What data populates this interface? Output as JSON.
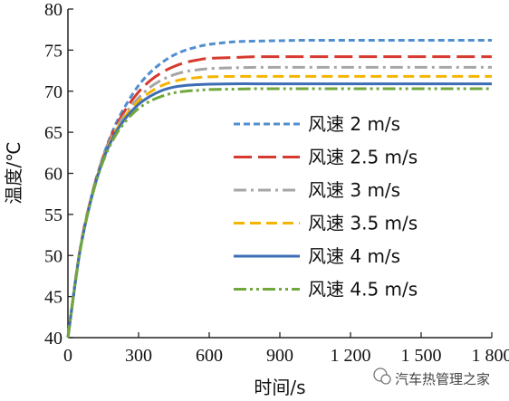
{
  "chart_data": {
    "type": "line",
    "xlabel": "时间/s",
    "ylabel": "温度/℃",
    "xlim": [
      0,
      1800
    ],
    "ylim": [
      40,
      80
    ],
    "x_ticks": [
      0,
      300,
      600,
      900,
      1200,
      1500,
      1800
    ],
    "x_tick_labels": [
      "0",
      "300",
      "600",
      "900",
      "1 200",
      "1 500",
      "1 800"
    ],
    "y_ticks": [
      40,
      45,
      50,
      55,
      60,
      65,
      70,
      75,
      80
    ],
    "y_tick_labels": [
      "40",
      "45",
      "50",
      "55",
      "60",
      "65",
      "70",
      "75",
      "80"
    ],
    "grid": false,
    "legend_position": "center-right",
    "x": [
      0,
      50,
      100,
      150,
      200,
      250,
      300,
      350,
      400,
      450,
      500,
      550,
      600,
      700,
      800,
      900,
      1000,
      1200,
      1400,
      1600,
      1800
    ],
    "series": [
      {
        "name": "风速 2 m/s",
        "color": "#4f8fd0",
        "dash": "short-dash",
        "values": [
          40,
          50.5,
          57.2,
          62.1,
          65.8,
          68.5,
          70.7,
          72.3,
          73.5,
          74.4,
          75.0,
          75.4,
          75.7,
          76.0,
          76.1,
          76.15,
          76.2,
          76.2,
          76.2,
          76.2,
          76.2
        ]
      },
      {
        "name": "风速 2.5 m/s",
        "color": "#d63a2f",
        "dash": "long-dash",
        "values": [
          40,
          50.5,
          57.2,
          62.0,
          65.5,
          68.0,
          69.9,
          71.3,
          72.3,
          73.0,
          73.5,
          73.8,
          74.0,
          74.1,
          74.2,
          74.2,
          74.2,
          74.2,
          74.2,
          74.2,
          74.2
        ]
      },
      {
        "name": "风速 3 m/s",
        "color": "#a6a6a6",
        "dash": "dash-dot",
        "values": [
          40,
          50.4,
          57.1,
          61.9,
          65.2,
          67.5,
          69.2,
          70.5,
          71.4,
          72.0,
          72.4,
          72.6,
          72.75,
          72.85,
          72.9,
          72.9,
          72.9,
          72.9,
          72.9,
          72.9,
          72.9
        ]
      },
      {
        "name": "风速 3.5 m/s",
        "color": "#f5b400",
        "dash": "medium-dash",
        "values": [
          40,
          50.4,
          57.1,
          61.8,
          65.0,
          67.2,
          68.8,
          69.9,
          70.7,
          71.2,
          71.5,
          71.65,
          71.75,
          71.8,
          71.8,
          71.8,
          71.8,
          71.8,
          71.8,
          71.8,
          71.8
        ]
      },
      {
        "name": "风速 4 m/s",
        "color": "#3d6db5",
        "dash": "solid",
        "values": [
          40,
          50.3,
          57.0,
          61.7,
          64.8,
          66.9,
          68.4,
          69.4,
          70.1,
          70.5,
          70.7,
          70.8,
          70.85,
          70.9,
          70.9,
          70.9,
          70.9,
          70.9,
          70.9,
          70.9,
          70.9
        ]
      },
      {
        "name": "风速 4.5 m/s",
        "color": "#70a83c",
        "dash": "dash-dot-dot",
        "values": [
          40,
          50.3,
          56.9,
          61.5,
          64.5,
          66.5,
          67.9,
          68.8,
          69.4,
          69.8,
          70.0,
          70.1,
          70.2,
          70.25,
          70.3,
          70.3,
          70.3,
          70.3,
          70.3,
          70.3,
          70.3
        ]
      }
    ]
  },
  "watermark": {
    "text": "汽车热管理之家",
    "icon": "wechat-icon"
  }
}
